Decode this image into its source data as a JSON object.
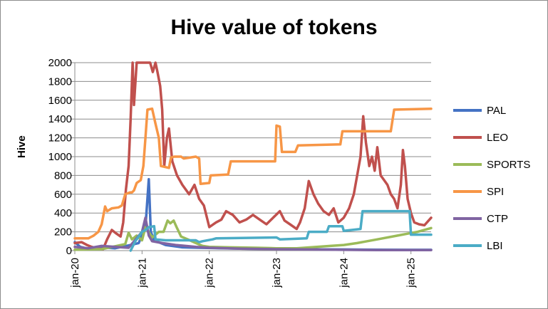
{
  "chart_data": {
    "type": "line",
    "title": "Hive value of tokens",
    "xlabel": "",
    "ylabel": "Hive",
    "ylim": [
      0,
      2000
    ],
    "yticks": [
      0,
      200,
      400,
      600,
      800,
      1000,
      1200,
      1400,
      1600,
      1800,
      2000
    ],
    "xlim": [
      2020.0,
      2025.3
    ],
    "xtick_labels": [
      "jan-20",
      "jan-21",
      "jan-22",
      "jan-23",
      "jan-24",
      "jan-25"
    ],
    "xtick_values": [
      2020,
      2021,
      2022,
      2023,
      2024,
      2025
    ],
    "grid": "horizontal",
    "legend_position": "right",
    "series": [
      {
        "name": "PAL",
        "color": "#4472c4",
        "points": [
          [
            2020.0,
            90
          ],
          [
            2020.08,
            40
          ],
          [
            2020.2,
            20
          ],
          [
            2020.4,
            35
          ],
          [
            2020.6,
            25
          ],
          [
            2020.8,
            55
          ],
          [
            2020.95,
            80
          ],
          [
            2021.05,
            250
          ],
          [
            2021.1,
            760
          ],
          [
            2021.13,
            200
          ],
          [
            2021.18,
            110
          ],
          [
            2021.35,
            60
          ],
          [
            2021.6,
            35
          ],
          [
            2021.85,
            30
          ],
          [
            2022.2,
            25
          ],
          [
            2022.6,
            20
          ],
          [
            2023.0,
            18
          ],
          [
            2023.5,
            14
          ],
          [
            2024.0,
            12
          ],
          [
            2024.5,
            10
          ],
          [
            2025.0,
            8
          ],
          [
            2025.3,
            8
          ]
        ]
      },
      {
        "name": "LEO",
        "color": "#c0504d",
        "points": [
          [
            2020.0,
            80
          ],
          [
            2020.1,
            90
          ],
          [
            2020.18,
            60
          ],
          [
            2020.25,
            40
          ],
          [
            2020.35,
            20
          ],
          [
            2020.42,
            15
          ],
          [
            2020.48,
            120
          ],
          [
            2020.55,
            220
          ],
          [
            2020.62,
            180
          ],
          [
            2020.68,
            150
          ],
          [
            2020.72,
            300
          ],
          [
            2020.76,
            650
          ],
          [
            2020.8,
            900
          ],
          [
            2020.83,
            1400
          ],
          [
            2020.86,
            2000
          ],
          [
            2020.88,
            1550
          ],
          [
            2020.92,
            2000
          ],
          [
            2020.96,
            2000
          ],
          [
            2021.02,
            2000
          ],
          [
            2021.08,
            2000
          ],
          [
            2021.12,
            2000
          ],
          [
            2021.16,
            1900
          ],
          [
            2021.2,
            2000
          ],
          [
            2021.23,
            1900
          ],
          [
            2021.27,
            1750
          ],
          [
            2021.3,
            1500
          ],
          [
            2021.33,
            900
          ],
          [
            2021.37,
            1200
          ],
          [
            2021.4,
            1300
          ],
          [
            2021.45,
            950
          ],
          [
            2021.52,
            800
          ],
          [
            2021.6,
            700
          ],
          [
            2021.7,
            600
          ],
          [
            2021.78,
            700
          ],
          [
            2021.85,
            550
          ],
          [
            2021.92,
            480
          ],
          [
            2022.0,
            250
          ],
          [
            2022.1,
            300
          ],
          [
            2022.18,
            330
          ],
          [
            2022.25,
            420
          ],
          [
            2022.35,
            380
          ],
          [
            2022.45,
            300
          ],
          [
            2022.55,
            330
          ],
          [
            2022.65,
            380
          ],
          [
            2022.75,
            330
          ],
          [
            2022.85,
            280
          ],
          [
            2022.95,
            350
          ],
          [
            2023.05,
            420
          ],
          [
            2023.12,
            320
          ],
          [
            2023.2,
            280
          ],
          [
            2023.3,
            230
          ],
          [
            2023.35,
            300
          ],
          [
            2023.42,
            450
          ],
          [
            2023.48,
            740
          ],
          [
            2023.55,
            600
          ],
          [
            2023.62,
            500
          ],
          [
            2023.7,
            420
          ],
          [
            2023.78,
            380
          ],
          [
            2023.85,
            450
          ],
          [
            2023.92,
            300
          ],
          [
            2024.0,
            350
          ],
          [
            2024.08,
            450
          ],
          [
            2024.15,
            600
          ],
          [
            2024.2,
            800
          ],
          [
            2024.25,
            1000
          ],
          [
            2024.29,
            1430
          ],
          [
            2024.33,
            1150
          ],
          [
            2024.38,
            900
          ],
          [
            2024.42,
            1000
          ],
          [
            2024.46,
            850
          ],
          [
            2024.5,
            1100
          ],
          [
            2024.55,
            800
          ],
          [
            2024.6,
            750
          ],
          [
            2024.65,
            700
          ],
          [
            2024.7,
            600
          ],
          [
            2024.75,
            550
          ],
          [
            2024.8,
            450
          ],
          [
            2024.85,
            700
          ],
          [
            2024.88,
            1070
          ],
          [
            2024.91,
            900
          ],
          [
            2024.95,
            550
          ],
          [
            2025.0,
            400
          ],
          [
            2025.05,
            300
          ],
          [
            2025.12,
            280
          ],
          [
            2025.2,
            270
          ],
          [
            2025.3,
            350
          ]
        ]
      },
      {
        "name": "SPORTS",
        "color": "#9bbb59",
        "points": [
          [
            2020.0,
            10
          ],
          [
            2020.4,
            15
          ],
          [
            2020.75,
            70
          ],
          [
            2020.8,
            190
          ],
          [
            2020.85,
            120
          ],
          [
            2020.92,
            160
          ],
          [
            2021.0,
            110
          ],
          [
            2021.05,
            250
          ],
          [
            2021.15,
            140
          ],
          [
            2021.25,
            200
          ],
          [
            2021.32,
            200
          ],
          [
            2021.38,
            320
          ],
          [
            2021.42,
            290
          ],
          [
            2021.47,
            320
          ],
          [
            2021.52,
            240
          ],
          [
            2021.58,
            150
          ],
          [
            2021.68,
            120
          ],
          [
            2021.8,
            80
          ],
          [
            2021.9,
            50
          ],
          [
            2022.0,
            40
          ],
          [
            2022.3,
            35
          ],
          [
            2022.7,
            30
          ],
          [
            2023.0,
            25
          ],
          [
            2023.3,
            25
          ],
          [
            2023.6,
            40
          ],
          [
            2023.8,
            50
          ],
          [
            2024.0,
            60
          ],
          [
            2024.2,
            80
          ],
          [
            2024.5,
            120
          ],
          [
            2024.8,
            160
          ],
          [
            2024.95,
            180
          ],
          [
            2025.1,
            200
          ],
          [
            2025.3,
            240
          ]
        ]
      },
      {
        "name": "SPI",
        "color": "#f79646",
        "points": [
          [
            2020.0,
            130
          ],
          [
            2020.2,
            130
          ],
          [
            2020.28,
            160
          ],
          [
            2020.35,
            200
          ],
          [
            2020.4,
            280
          ],
          [
            2020.45,
            470
          ],
          [
            2020.48,
            420
          ],
          [
            2020.55,
            450
          ],
          [
            2020.65,
            460
          ],
          [
            2020.7,
            480
          ],
          [
            2020.75,
            600
          ],
          [
            2020.82,
            620
          ],
          [
            2020.85,
            620
          ],
          [
            2020.88,
            640
          ],
          [
            2020.92,
            720
          ],
          [
            2020.98,
            750
          ],
          [
            2021.02,
            900
          ],
          [
            2021.05,
            1200
          ],
          [
            2021.08,
            1500
          ],
          [
            2021.15,
            1510
          ],
          [
            2021.2,
            1350
          ],
          [
            2021.25,
            1200
          ],
          [
            2021.28,
            900
          ],
          [
            2021.4,
            880
          ],
          [
            2021.43,
            990
          ],
          [
            2021.48,
            1000
          ],
          [
            2021.58,
            1000
          ],
          [
            2021.62,
            980
          ],
          [
            2021.8,
            1000
          ],
          [
            2021.85,
            980
          ],
          [
            2021.87,
            710
          ],
          [
            2022.0,
            720
          ],
          [
            2022.02,
            800
          ],
          [
            2022.28,
            810
          ],
          [
            2022.32,
            950
          ],
          [
            2022.98,
            950
          ],
          [
            2023.0,
            1330
          ],
          [
            2023.05,
            1320
          ],
          [
            2023.08,
            1050
          ],
          [
            2023.28,
            1050
          ],
          [
            2023.32,
            1120
          ],
          [
            2023.95,
            1130
          ],
          [
            2023.98,
            1270
          ],
          [
            2024.7,
            1270
          ],
          [
            2024.75,
            1500
          ],
          [
            2025.3,
            1510
          ]
        ]
      },
      {
        "name": "CTP",
        "color": "#8064a2",
        "points": [
          [
            2020.0,
            40
          ],
          [
            2020.2,
            25
          ],
          [
            2020.4,
            50
          ],
          [
            2020.6,
            40
          ],
          [
            2020.8,
            30
          ],
          [
            2021.0,
            200
          ],
          [
            2021.05,
            350
          ],
          [
            2021.1,
            160
          ],
          [
            2021.15,
            100
          ],
          [
            2021.3,
            80
          ],
          [
            2021.5,
            60
          ],
          [
            2021.8,
            40
          ],
          [
            2022.0,
            30
          ],
          [
            2022.5,
            20
          ],
          [
            2023.0,
            15
          ],
          [
            2023.5,
            12
          ],
          [
            2024.0,
            8
          ],
          [
            2024.5,
            6
          ],
          [
            2025.0,
            5
          ],
          [
            2025.3,
            5
          ]
        ]
      },
      {
        "name": "LBI",
        "color": "#4bacc6",
        "points": [
          [
            2020.83,
            0
          ],
          [
            2020.9,
            100
          ],
          [
            2020.95,
            150
          ],
          [
            2021.0,
            200
          ],
          [
            2021.05,
            220
          ],
          [
            2021.1,
            250
          ],
          [
            2021.18,
            260
          ],
          [
            2021.2,
            120
          ],
          [
            2021.35,
            110
          ],
          [
            2021.8,
            110
          ],
          [
            2021.85,
            90
          ],
          [
            2021.9,
            100
          ],
          [
            2022.05,
            120
          ],
          [
            2022.1,
            130
          ],
          [
            2023.0,
            140
          ],
          [
            2023.05,
            120
          ],
          [
            2023.45,
            130
          ],
          [
            2023.48,
            200
          ],
          [
            2023.75,
            200
          ],
          [
            2023.78,
            260
          ],
          [
            2023.98,
            260
          ],
          [
            2024.0,
            210
          ],
          [
            2024.25,
            230
          ],
          [
            2024.28,
            420
          ],
          [
            2024.98,
            420
          ],
          [
            2025.0,
            170
          ],
          [
            2025.3,
            170
          ]
        ]
      }
    ]
  }
}
